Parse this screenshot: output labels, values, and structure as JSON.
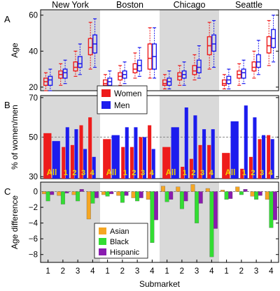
{
  "colors": {
    "women": "#ee1c1c",
    "men": "#1c1cee",
    "asian": "#f5a623",
    "black": "#33dd33",
    "hispanic": "#8a1cb0",
    "shade": "#d9d9d9",
    "ref_line": "#888888"
  },
  "city_labels": [
    "New York",
    "Boston",
    "Chicago",
    "Seattle"
  ],
  "submarket_ticks": [
    "1",
    "2",
    "3",
    "4"
  ],
  "chart_data": [
    {
      "panel": "A",
      "type": "box",
      "ylabel": "Age",
      "ylim": [
        18,
        63
      ],
      "yticks": [
        20,
        40,
        60
      ],
      "series": [
        {
          "name": "Women",
          "color_key": "women"
        },
        {
          "name": "Men",
          "color_key": "men"
        }
      ],
      "cities": [
        {
          "name": "New York",
          "boxes": [
            {
              "women": [
                18,
                21,
                23,
                25,
                28
              ],
              "men": [
                18,
                21,
                24,
                26,
                30
              ]
            },
            {
              "women": [
                21,
                25,
                27,
                29,
                33
              ],
              "men": [
                22,
                25,
                28,
                30,
                35
              ]
            },
            {
              "women": [
                26,
                29,
                31,
                34,
                40
              ],
              "men": [
                27,
                31,
                33,
                37,
                44
              ]
            },
            {
              "women": [
                30,
                38,
                42,
                47,
                56
              ],
              "men": [
                31,
                39,
                44,
                49,
                58
              ]
            }
          ]
        },
        {
          "name": "Boston",
          "boxes": [
            {
              "women": [
                19,
                21,
                22,
                24,
                27
              ],
              "men": [
                19,
                21,
                23,
                25,
                29
              ]
            },
            {
              "women": [
                21,
                24,
                26,
                28,
                32
              ],
              "men": [
                22,
                25,
                27,
                29,
                34
              ]
            },
            {
              "women": [
                25,
                28,
                30,
                33,
                39
              ],
              "men": [
                26,
                29,
                32,
                35,
                42
              ]
            },
            {
              "women": [
                25,
                30,
                36,
                44,
                53
              ],
              "men": [
                25,
                30,
                37,
                44,
                53
              ]
            }
          ]
        },
        {
          "name": "Chicago",
          "boxes": [
            {
              "women": [
                19,
                21,
                22,
                24,
                27
              ],
              "men": [
                19,
                21,
                23,
                25,
                29
              ]
            },
            {
              "women": [
                21,
                24,
                26,
                28,
                32
              ],
              "men": [
                21,
                25,
                27,
                29,
                34
              ]
            },
            {
              "women": [
                24,
                27,
                29,
                32,
                38
              ],
              "men": [
                25,
                28,
                31,
                35,
                43
              ]
            },
            {
              "women": [
                30,
                38,
                43,
                48,
                56
              ],
              "men": [
                31,
                40,
                44,
                49,
                57
              ]
            }
          ]
        },
        {
          "name": "Seattle",
          "boxes": [
            {
              "women": [
                19,
                21,
                22,
                24,
                27
              ],
              "men": [
                19,
                22,
                24,
                26,
                30
              ]
            },
            {
              "women": [
                21,
                25,
                27,
                29,
                33
              ],
              "men": [
                22,
                25,
                28,
                30,
                35
              ]
            },
            {
              "women": [
                25,
                29,
                31,
                34,
                40
              ],
              "men": [
                27,
                31,
                34,
                38,
                46
              ]
            },
            {
              "women": [
                32,
                39,
                43,
                48,
                57
              ],
              "men": [
                34,
                42,
                47,
                52,
                60
              ]
            }
          ]
        }
      ]
    },
    {
      "panel": "B",
      "type": "bar",
      "ylabel": "% of women/men",
      "ylim": [
        29,
        71
      ],
      "yticks": [
        30,
        50,
        70
      ],
      "reference_line": 50,
      "categories": [
        "All",
        "1",
        "2",
        "3",
        "4"
      ],
      "legend": [
        "Women",
        "Men"
      ],
      "cities": [
        {
          "name": "New York",
          "women": [
            52,
            45,
            46,
            56,
            60
          ],
          "men": [
            48,
            55,
            54,
            44,
            40
          ]
        },
        {
          "name": "Boston",
          "women": [
            49,
            45,
            45,
            50,
            56
          ],
          "men": [
            51,
            55,
            55,
            50,
            44
          ]
        },
        {
          "name": "Chicago",
          "women": [
            45,
            35,
            39,
            46,
            46
          ],
          "men": [
            55,
            65,
            61,
            54,
            54
          ]
        },
        {
          "name": "Seattle",
          "women": [
            42,
            34,
            40,
            49,
            51
          ],
          "men": [
            58,
            66,
            60,
            51,
            49
          ]
        }
      ]
    },
    {
      "panel": "C",
      "type": "bar",
      "ylabel": "Age difference",
      "ylim": [
        -9,
        1.2
      ],
      "yticks": [
        0,
        -2,
        -4,
        -6,
        -8
      ],
      "xlabel": "Submarket",
      "categories": [
        "1",
        "2",
        "3",
        "4"
      ],
      "series": [
        "Asian",
        "Black",
        "Hispanic"
      ],
      "cities": [
        {
          "name": "New York",
          "asian": [
            -0.3,
            -0.5,
            -0.4,
            -3.5
          ],
          "black": [
            -1.2,
            -1.6,
            -1.2,
            -1.5
          ],
          "hispanic": [
            -0.4,
            -0.2,
            0.3,
            -0.8
          ]
        },
        {
          "name": "Boston",
          "asian": [
            -0.4,
            -0.5,
            -0.8,
            -1.0
          ],
          "black": [
            -0.6,
            -1.4,
            -1.2,
            -6.5
          ],
          "hispanic": [
            -0.3,
            -0.5,
            -0.8,
            -3.6
          ]
        },
        {
          "name": "Chicago",
          "asian": [
            0.7,
            0.6,
            0.9,
            0.4
          ],
          "black": [
            -1.3,
            -2.2,
            -4.0,
            -8.3
          ],
          "hispanic": [
            -1.0,
            -1.2,
            -1.5,
            -4.7
          ]
        },
        {
          "name": "Seattle",
          "asian": [
            0.2,
            0.6,
            -0.6,
            -1.0
          ],
          "black": [
            -1.0,
            -0.4,
            -1.0,
            -4.6
          ],
          "hispanic": [
            -0.9,
            0.3,
            -0.5,
            -3.6
          ]
        }
      ]
    }
  ]
}
